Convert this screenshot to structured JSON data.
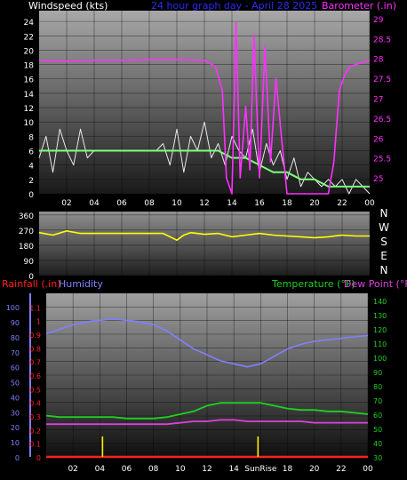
{
  "title": "24 hour graph day - April 28 2025",
  "colors": {
    "wind": "#e8e8e8",
    "wind_avg": "#7cff7c",
    "barometer": "#ff30ff",
    "direction": "#ffff00",
    "humidity": "#8080ff",
    "temperature": "#20d020",
    "dewpoint": "#e040e0",
    "rainfall": "#ff2020",
    "sun": "#ffee00"
  },
  "chart_data": [
    {
      "type": "line",
      "panel": "wind-barometer",
      "title": "24 hour graph day - April 28 2025",
      "left_label": "Windspeed (kts)",
      "right_label": "Barometer (.in)",
      "x_ticks": [
        "02",
        "04",
        "06",
        "08",
        "10",
        "12",
        "14",
        "16",
        "18",
        "20",
        "22",
        "00"
      ],
      "y_left_ticks": [
        "0",
        "2",
        "4",
        "6",
        "8",
        "10",
        "12",
        "14",
        "16",
        "18",
        "20",
        "22",
        "24"
      ],
      "y_left_lim": [
        0,
        25.5
      ],
      "y_right_ticks": [
        "25",
        "25.5",
        "26",
        "26.5",
        "27",
        "27.5",
        "28",
        "28.5",
        "29"
      ],
      "y_right_lim": [
        24.6,
        29.2
      ],
      "x_lim": [
        0,
        24
      ],
      "series": [
        {
          "name": "Windspeed",
          "values_x": [
            0,
            0.5,
            1,
            1.5,
            2,
            2.5,
            3,
            3.5,
            4,
            4.5,
            5,
            5.5,
            6,
            6.5,
            7,
            7.5,
            8,
            8.5,
            9,
            9.5,
            10,
            10.5,
            11,
            11.5,
            12,
            12.5,
            13,
            13.5,
            14,
            14.5,
            15,
            15.5,
            16,
            16.5,
            17,
            17.5,
            18,
            18.5,
            19,
            19.5,
            20,
            20.5,
            21,
            21.5,
            22,
            22.5,
            23,
            23.5,
            24
          ],
          "values": [
            5,
            8,
            3,
            9,
            6,
            4,
            9,
            5,
            6,
            6,
            6,
            6,
            6,
            6,
            6,
            6,
            6,
            6,
            7,
            4,
            9,
            3,
            8,
            6,
            10,
            5,
            7,
            4,
            8,
            6,
            5,
            9,
            3,
            7,
            4,
            6,
            2,
            5,
            1,
            3,
            2,
            1,
            2,
            1,
            2,
            0,
            2,
            1,
            0
          ]
        },
        {
          "name": "Average Wind",
          "values_x": [
            0,
            1,
            2,
            3,
            4,
            5,
            6,
            7,
            8,
            9,
            10,
            11,
            12,
            13,
            14,
            15,
            16,
            17,
            18,
            19,
            20,
            21,
            22,
            23,
            24
          ],
          "values": [
            6,
            6,
            6,
            6,
            6,
            6,
            6,
            6,
            6,
            6,
            6,
            6,
            6,
            6,
            5,
            5,
            4,
            3,
            3,
            2,
            2,
            1,
            1,
            1,
            1
          ]
        },
        {
          "name": "Barometer",
          "values_x": [
            0,
            2,
            4,
            6,
            8,
            10,
            12,
            12.8,
            13.3,
            13.6,
            14,
            14.3,
            14.6,
            15,
            15.3,
            15.6,
            16,
            16.4,
            16.8,
            17.2,
            17.6,
            18,
            18.5,
            19,
            19.5,
            20,
            20.5,
            21,
            21.4,
            21.8,
            22.2,
            22.6,
            23,
            23.5,
            24
          ],
          "values": [
            27.95,
            27.93,
            27.95,
            27.95,
            27.97,
            27.97,
            27.95,
            27.8,
            27.2,
            25.0,
            24.6,
            28.9,
            25.0,
            26.8,
            25.2,
            28.6,
            25.0,
            28.3,
            25.4,
            27.5,
            26.0,
            24.6,
            24.6,
            24.6,
            24.6,
            24.6,
            24.6,
            24.6,
            25.4,
            27.2,
            27.6,
            27.8,
            27.85,
            27.9,
            27.95
          ]
        }
      ]
    },
    {
      "type": "line",
      "panel": "wind-direction",
      "y_ticks": [
        "0",
        "90",
        "180",
        "270",
        "360"
      ],
      "y_lim": [
        0,
        380
      ],
      "direction_labels": [
        "N",
        "W",
        "S",
        "E",
        "N"
      ],
      "series": [
        {
          "name": "Wind Direction",
          "values_x": [
            0,
            1,
            2,
            3,
            4,
            5,
            6,
            7,
            8,
            9,
            9.5,
            10,
            10.5,
            11,
            12,
            13,
            14,
            15,
            16,
            17,
            18,
            19,
            20,
            21,
            22,
            23,
            24
          ],
          "values": [
            255,
            240,
            265,
            250,
            250,
            250,
            250,
            250,
            250,
            250,
            230,
            210,
            240,
            255,
            245,
            250,
            230,
            240,
            250,
            240,
            235,
            230,
            225,
            230,
            240,
            235,
            235
          ]
        }
      ]
    },
    {
      "type": "line",
      "panel": "rain-humidity-temperature",
      "left_label_rain": "Rainfall (.in)",
      "left_label_humidity": "Humidity",
      "right_label_temp": "Temperature (°F)",
      "right_label_dew": "Dew Point (°F)",
      "x_ticks": [
        "02",
        "04",
        "06",
        "08",
        "10",
        "12",
        "14",
        "SunRise",
        "18",
        "20",
        "22",
        "00"
      ],
      "rain_ticks": [
        "0",
        "0.1",
        "0.2",
        "0.3",
        "0.4",
        "0.5",
        "0.6",
        "0.7",
        "0.8",
        "0.9",
        "1",
        "1.1"
      ],
      "rain_lim": [
        0,
        1.2
      ],
      "humidity_ticks": [
        "0",
        "10",
        "20",
        "30",
        "40",
        "50",
        "60",
        "70",
        "80",
        "90",
        "100"
      ],
      "humidity_lim": [
        0,
        109
      ],
      "temp_ticks": [
        "30",
        "40",
        "50",
        "60",
        "70",
        "80",
        "90",
        "100",
        "110",
        "120",
        "130",
        "140"
      ],
      "temp_lim": [
        30,
        145
      ],
      "series": [
        {
          "name": "Humidity",
          "values_x": [
            0,
            1,
            2,
            3,
            4,
            5,
            6,
            7,
            8,
            9,
            10,
            11,
            12,
            13,
            14,
            15,
            16,
            17,
            18,
            19,
            20,
            21,
            22,
            23,
            24
          ],
          "values": [
            82,
            85,
            88,
            90,
            91,
            92,
            91,
            90,
            88,
            84,
            78,
            72,
            68,
            64,
            62,
            60,
            62,
            67,
            72,
            75,
            77,
            78,
            79,
            80,
            81
          ]
        },
        {
          "name": "Temperature",
          "values_x": [
            0,
            1,
            2,
            3,
            4,
            5,
            6,
            7,
            8,
            9,
            10,
            11,
            12,
            13,
            14,
            15,
            16,
            17,
            18,
            19,
            20,
            21,
            22,
            23,
            24
          ],
          "values": [
            59,
            58,
            58,
            58,
            58,
            58,
            57,
            57,
            57,
            58,
            60,
            62,
            66,
            68,
            68,
            68,
            68,
            66,
            64,
            63,
            63,
            62,
            62,
            61,
            60
          ]
        },
        {
          "name": "Dew Point",
          "values_x": [
            0,
            1,
            2,
            3,
            4,
            5,
            6,
            7,
            8,
            9,
            10,
            11,
            12,
            13,
            14,
            15,
            16,
            17,
            18,
            19,
            20,
            21,
            22,
            23,
            24
          ],
          "values": [
            53,
            53,
            53,
            53,
            53,
            53,
            53,
            53,
            53,
            53,
            54,
            55,
            55,
            56,
            56,
            55,
            55,
            55,
            55,
            55,
            54,
            54,
            54,
            54,
            54
          ]
        },
        {
          "name": "Rainfall",
          "values_x": [
            0,
            24
          ],
          "values": [
            0,
            0
          ]
        }
      ],
      "sun_markers": [
        {
          "x": 4.2,
          "height": 0.15
        },
        {
          "x": 15.8,
          "height": 0.15
        }
      ]
    }
  ]
}
